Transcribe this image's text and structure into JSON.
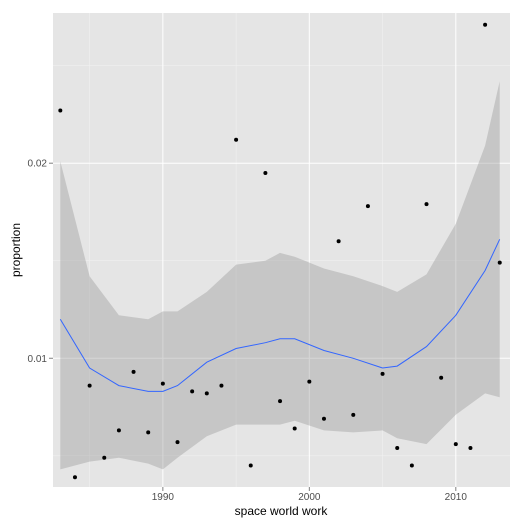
{
  "chart_data": {
    "type": "scatter",
    "title": "",
    "xlabel": "space world work",
    "ylabel": "proportion",
    "xlim": [
      1982.5,
      2013.7
    ],
    "ylim": [
      0.0034,
      0.0277
    ],
    "x_ticks": [
      1990,
      2000,
      2010
    ],
    "x_tick_labels": [
      "1990",
      "2000",
      "2010"
    ],
    "y_ticks": [
      0.01,
      0.02
    ],
    "y_tick_labels": [
      "0.01",
      "0.02"
    ],
    "grid": true,
    "legend": "none",
    "points": [
      {
        "x": 1983,
        "y": 0.0227
      },
      {
        "x": 1984,
        "y": 0.0039
      },
      {
        "x": 1985,
        "y": 0.0086
      },
      {
        "x": 1986,
        "y": 0.0049
      },
      {
        "x": 1987,
        "y": 0.0063
      },
      {
        "x": 1988,
        "y": 0.0093
      },
      {
        "x": 1989,
        "y": 0.0062
      },
      {
        "x": 1990,
        "y": 0.0087
      },
      {
        "x": 1991,
        "y": 0.0057
      },
      {
        "x": 1992,
        "y": 0.0083
      },
      {
        "x": 1993,
        "y": 0.0082
      },
      {
        "x": 1994,
        "y": 0.0086
      },
      {
        "x": 1995,
        "y": 0.0212
      },
      {
        "x": 1996,
        "y": 0.0045
      },
      {
        "x": 1997,
        "y": 0.0195
      },
      {
        "x": 1998,
        "y": 0.0078
      },
      {
        "x": 1999,
        "y": 0.0064
      },
      {
        "x": 2000,
        "y": 0.0088
      },
      {
        "x": 2001,
        "y": 0.0069
      },
      {
        "x": 2002,
        "y": 0.016
      },
      {
        "x": 2003,
        "y": 0.0071
      },
      {
        "x": 2004,
        "y": 0.0178
      },
      {
        "x": 2005,
        "y": 0.0092
      },
      {
        "x": 2006,
        "y": 0.0054
      },
      {
        "x": 2007,
        "y": 0.0045
      },
      {
        "x": 2008,
        "y": 0.0179
      },
      {
        "x": 2009,
        "y": 0.009
      },
      {
        "x": 2010,
        "y": 0.0056
      },
      {
        "x": 2011,
        "y": 0.0054
      },
      {
        "x": 2012,
        "y": 0.0271
      },
      {
        "x": 2013,
        "y": 0.0149
      }
    ],
    "smooth": {
      "x": [
        1983,
        1985,
        1987,
        1989,
        1990,
        1991,
        1993,
        1995,
        1997,
        1998,
        1999,
        2001,
        2003,
        2005,
        2006,
        2008,
        2010,
        2012,
        2013
      ],
      "y": [
        0.012,
        0.0095,
        0.0086,
        0.0083,
        0.0083,
        0.0086,
        0.0098,
        0.0105,
        0.0108,
        0.011,
        0.011,
        0.0104,
        0.01,
        0.0095,
        0.0096,
        0.0106,
        0.0122,
        0.0145,
        0.0161
      ],
      "lower": [
        0.0043,
        0.0047,
        0.0049,
        0.0046,
        0.0043,
        0.0049,
        0.006,
        0.0066,
        0.0066,
        0.0066,
        0.0068,
        0.0063,
        0.0062,
        0.0063,
        0.0059,
        0.0056,
        0.0071,
        0.0082,
        0.008
      ],
      "upper": [
        0.0201,
        0.0142,
        0.0122,
        0.012,
        0.0124,
        0.0124,
        0.0134,
        0.0148,
        0.015,
        0.0154,
        0.0152,
        0.0146,
        0.0142,
        0.0137,
        0.0134,
        0.0143,
        0.0169,
        0.0209,
        0.0242
      ]
    },
    "colors": {
      "panel": "#e5e5e5",
      "grid_major": "#ffffff",
      "grid_minor": "#f2f2f2",
      "band": "#999999",
      "line": "#3366ff",
      "point": "#000000"
    }
  }
}
